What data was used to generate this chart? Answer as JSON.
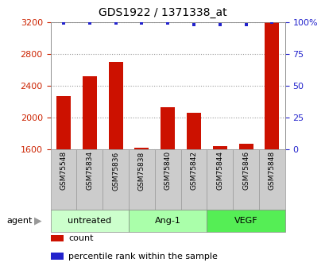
{
  "title": "GDS1922 / 1371338_at",
  "samples": [
    "GSM75548",
    "GSM75834",
    "GSM75836",
    "GSM75838",
    "GSM75840",
    "GSM75842",
    "GSM75844",
    "GSM75846",
    "GSM75848"
  ],
  "counts": [
    2270,
    2520,
    2700,
    1620,
    2130,
    2060,
    1640,
    1670,
    3200
  ],
  "percentile_ranks": [
    99,
    99,
    99,
    99,
    99,
    98,
    98,
    98,
    100
  ],
  "groups": [
    {
      "label": "untreated",
      "indices": [
        0,
        1,
        2
      ],
      "color": "#ccffcc"
    },
    {
      "label": "Ang-1",
      "indices": [
        3,
        4,
        5
      ],
      "color": "#aaffaa"
    },
    {
      "label": "VEGF",
      "indices": [
        6,
        7,
        8
      ],
      "color": "#55ee55"
    }
  ],
  "ylim_left": [
    1600,
    3200
  ],
  "ylim_right": [
    0,
    100
  ],
  "yticks_left": [
    1600,
    2000,
    2400,
    2800,
    3200
  ],
  "yticks_right": [
    0,
    25,
    50,
    75,
    100
  ],
  "bar_color": "#cc1100",
  "dot_color": "#2222cc",
  "grid_color": "#999999",
  "left_tick_color": "#cc2200",
  "right_tick_color": "#2222cc",
  "sample_box_color": "#cccccc",
  "sample_box_edge": "#999999"
}
